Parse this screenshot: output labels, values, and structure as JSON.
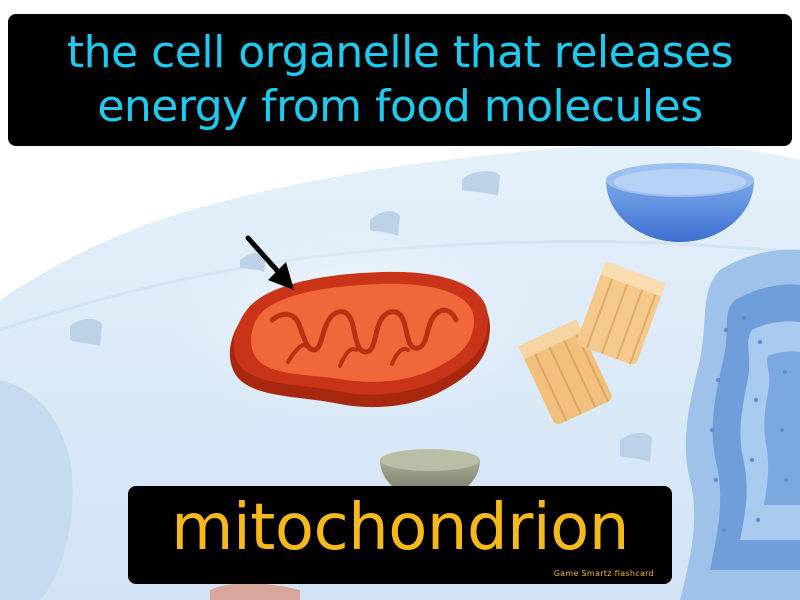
{
  "card": {
    "definition_lines": [
      "the cell organelle that releases",
      "energy from food molecules"
    ],
    "term": "mitochondrion",
    "watermark": "Game  Smartz  flashcard"
  },
  "colors": {
    "definition_text": "#1ecbf0",
    "term_text": "#f6b91a",
    "label_background": "#000000",
    "cell_membrane": "#dbe9f6",
    "mitochondrion_outer": "#c93418",
    "mitochondrion_inner": "#f0683a",
    "vacuole": "#5b8fde",
    "centriole": "#f2c07e"
  },
  "icons": {
    "pointer": "arrow-icon"
  }
}
